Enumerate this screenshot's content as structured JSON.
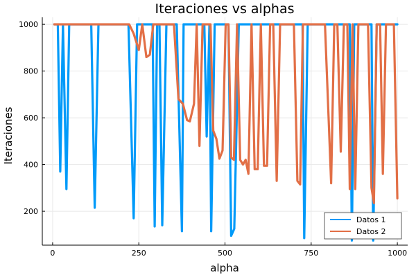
{
  "chart_data": {
    "type": "line",
    "title": "Iteraciones vs alphas",
    "xlabel": "alpha",
    "ylabel": "Iteraciones",
    "xlim": [
      -30,
      1030
    ],
    "ylim": [
      55,
      1030
    ],
    "xticks": [
      0,
      250,
      500,
      750,
      1000
    ],
    "yticks": [
      200,
      400,
      600,
      800,
      1000
    ],
    "grid": true,
    "legend_position": "bottom-right",
    "series": [
      {
        "name": "Datos 1",
        "color": "#009af9",
        "x": [
          5,
          15,
          22,
          30,
          40,
          48,
          60,
          80,
          100,
          112,
          122,
          133,
          145,
          160,
          180,
          200,
          220,
          235,
          245,
          260,
          275,
          290,
          296,
          303,
          310,
          318,
          330,
          345,
          360,
          375,
          380,
          395,
          410,
          425,
          440,
          447,
          455,
          460,
          470,
          485,
          500,
          510,
          518,
          527,
          540,
          560,
          580,
          600,
          620,
          640,
          660,
          680,
          700,
          715,
          725,
          730,
          740,
          760,
          780,
          800,
          820,
          840,
          855,
          862,
          868,
          875,
          885,
          900,
          915,
          925,
          930,
          940,
          955,
          970,
          985,
          1000
        ],
        "values": [
          1000,
          1000,
          370,
          1000,
          295,
          1000,
          1000,
          1000,
          1000,
          1000,
          215,
          1000,
          1000,
          1000,
          1000,
          1000,
          1000,
          170,
          1000,
          1000,
          1000,
          1000,
          135,
          1000,
          1000,
          140,
          1000,
          1000,
          1000,
          115,
          1000,
          1000,
          1000,
          1000,
          1000,
          520,
          1000,
          115,
          1000,
          1000,
          1000,
          1000,
          95,
          125,
          1000,
          1000,
          1000,
          1000,
          1000,
          1000,
          1000,
          1000,
          1000,
          1000,
          1000,
          85,
          1000,
          1000,
          1000,
          1000,
          1000,
          1000,
          1000,
          1000,
          75,
          1000,
          1000,
          1000,
          1000,
          1000,
          75,
          1000,
          1000,
          1000,
          1000,
          1000
        ]
      },
      {
        "name": "Datos 2",
        "color": "#e26f46",
        "x": [
          5,
          50,
          100,
          150,
          200,
          222,
          235,
          250,
          260,
          272,
          282,
          292,
          300,
          310,
          320,
          330,
          340,
          352,
          365,
          378,
          390,
          398,
          410,
          418,
          426,
          435,
          443,
          450,
          458,
          466,
          475,
          484,
          493,
          502,
          510,
          518,
          526,
          535,
          544,
          552,
          560,
          568,
          577,
          586,
          595,
          604,
          613,
          622,
          631,
          640,
          650,
          660,
          670,
          680,
          690,
          700,
          710,
          718,
          726,
          734,
          742,
          750,
          770,
          790,
          808,
          817,
          826,
          836,
          845,
          855,
          862,
          870,
          878,
          887,
          895,
          905,
          915,
          925,
          932,
          940,
          950,
          958,
          967,
          978,
          990,
          1000
        ],
        "values": [
          1000,
          1000,
          1000,
          1000,
          1000,
          1000,
          960,
          890,
          1000,
          860,
          870,
          1000,
          1000,
          1000,
          1000,
          1000,
          1000,
          1000,
          680,
          660,
          590,
          585,
          660,
          1000,
          480,
          1000,
          1000,
          1000,
          1000,
          545,
          510,
          425,
          460,
          1000,
          1000,
          430,
          420,
          1000,
          420,
          400,
          420,
          360,
          1000,
          380,
          380,
          1000,
          395,
          395,
          1000,
          1000,
          330,
          1000,
          1000,
          1000,
          1000,
          1000,
          330,
          315,
          1000,
          1000,
          1000,
          1000,
          1000,
          1000,
          320,
          1000,
          1000,
          455,
          1000,
          1000,
          295,
          1000,
          295,
          1000,
          1000,
          1000,
          1000,
          300,
          235,
          1000,
          1000,
          360,
          1000,
          1000,
          1000,
          255
        ]
      }
    ]
  }
}
